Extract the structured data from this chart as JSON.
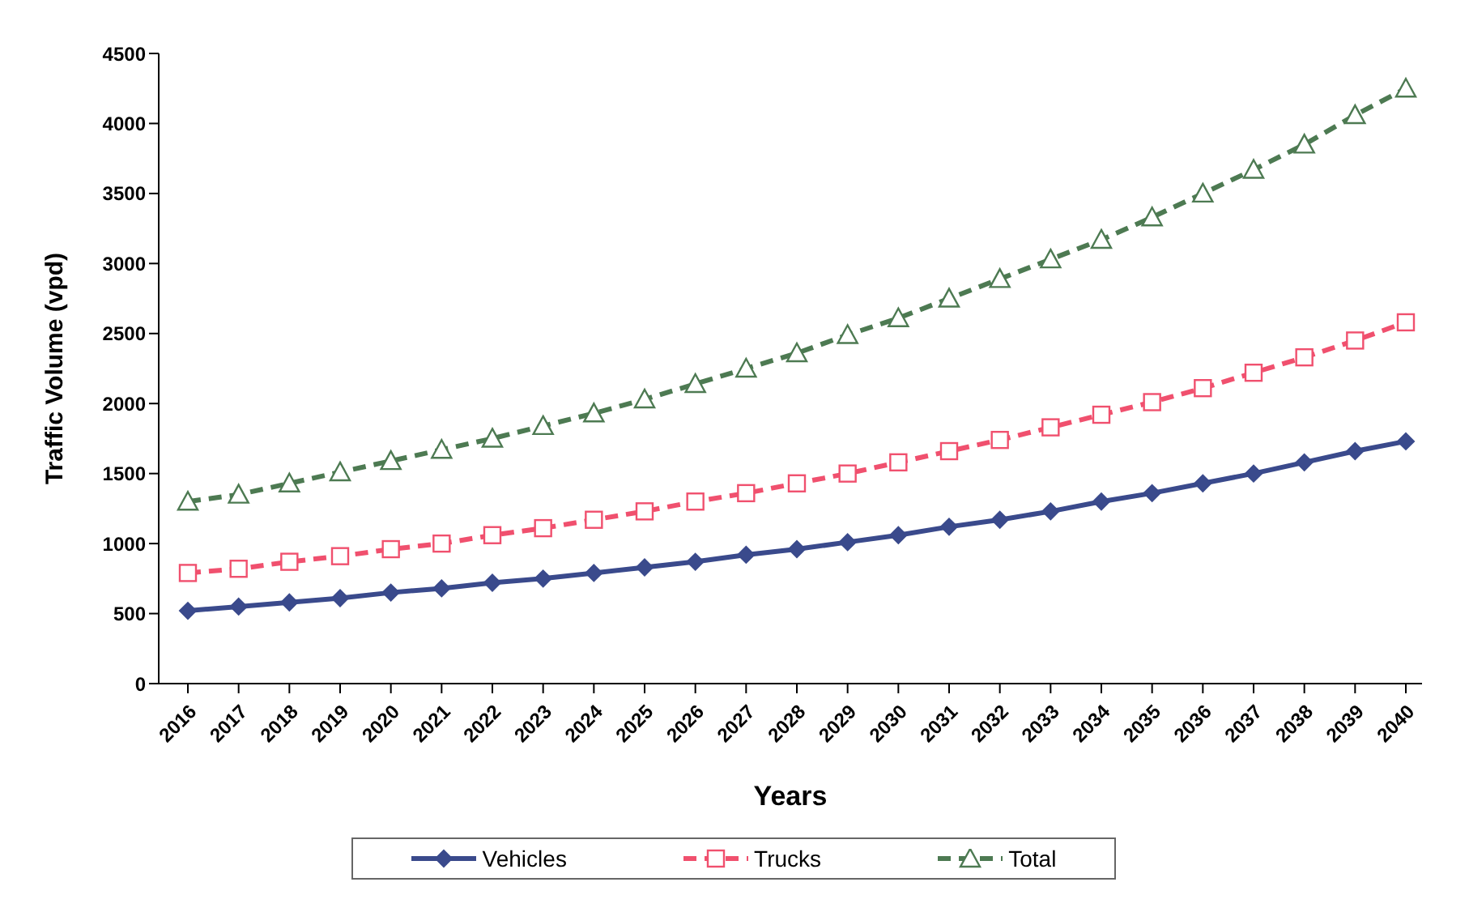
{
  "chart_data": {
    "type": "line",
    "xlabel": "Years",
    "ylabel": "Traffic Volume (vpd)",
    "categories": [
      "2016",
      "2017",
      "2018",
      "2019",
      "2020",
      "2021",
      "2022",
      "2023",
      "2024",
      "2025",
      "2026",
      "2027",
      "2028",
      "2029",
      "2030",
      "2031",
      "2032",
      "2033",
      "2034",
      "2035",
      "2036",
      "2037",
      "2038",
      "2039",
      "2040"
    ],
    "series": [
      {
        "name": "Vehicles",
        "color": "#3a4a8c",
        "marker": "diamond",
        "line_style": "solid",
        "values": [
          520,
          550,
          580,
          610,
          650,
          680,
          720,
          750,
          790,
          830,
          870,
          920,
          960,
          1010,
          1060,
          1120,
          1170,
          1230,
          1300,
          1360,
          1430,
          1500,
          1580,
          1660,
          1730
        ]
      },
      {
        "name": "Trucks",
        "color": "#f0506e",
        "marker": "square",
        "line_style": "dashed",
        "values": [
          790,
          820,
          870,
          910,
          960,
          1000,
          1060,
          1110,
          1170,
          1230,
          1300,
          1360,
          1430,
          1500,
          1580,
          1660,
          1740,
          1830,
          1920,
          2010,
          2110,
          2220,
          2330,
          2450,
          2580
        ]
      },
      {
        "name": "Total",
        "color": "#4d7a52",
        "marker": "triangle",
        "line_style": "dashed",
        "values": [
          1300,
          1350,
          1430,
          1510,
          1590,
          1670,
          1750,
          1840,
          1930,
          2030,
          2140,
          2250,
          2360,
          2490,
          2610,
          2750,
          2890,
          3030,
          3170,
          3330,
          3500,
          3670,
          3850,
          4060,
          4250
        ]
      }
    ],
    "ylim": [
      0,
      4500
    ],
    "yticks": [
      0,
      500,
      1000,
      1500,
      2000,
      2500,
      3000,
      3500,
      4000,
      4500
    ],
    "grid": false,
    "legend": "bottom"
  }
}
